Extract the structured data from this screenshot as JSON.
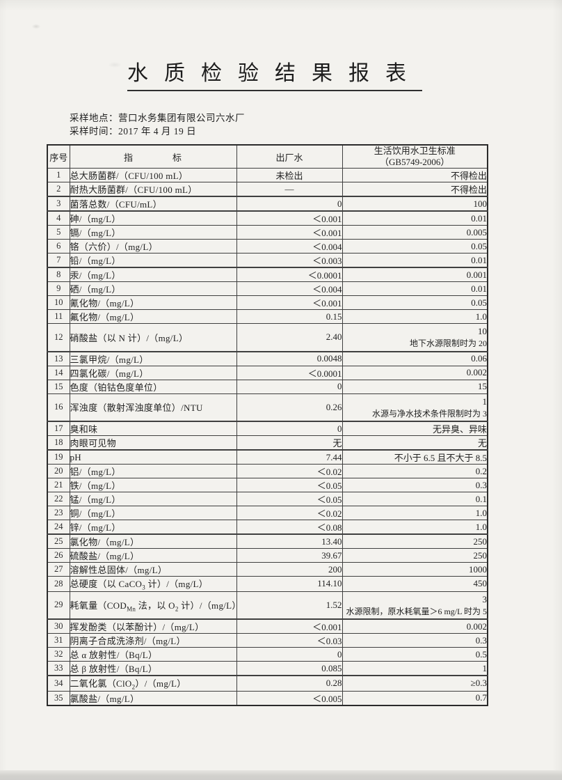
{
  "page": {
    "title": "水质检验结果报表",
    "meta": {
      "location_line": "采样地点：营口水务集团有限公司六水厂",
      "time_line": "采样时间：2017 年 4 月 19 日"
    }
  },
  "table": {
    "headers": {
      "no": "序号",
      "indicator": "指　　　　标",
      "outflow": "出厂水",
      "standard_line1": "生活饮用水卫生标准",
      "standard_line2": "（GB5749-2006）"
    },
    "rows": [
      {
        "no": "1",
        "label": "总大肠菌群/（CFU/100 mL）",
        "value": "未检出",
        "center_value": true,
        "standard": "不得检出"
      },
      {
        "no": "2",
        "label": "耐热大肠菌群/（CFU/100 mL）",
        "value": "—",
        "center_value": true,
        "standard": "不得检出"
      },
      {
        "no": "3",
        "label": "菌落总数/（CFU/mL）",
        "value": "0",
        "standard": "100"
      },
      {
        "no": "4",
        "label": "砷/（mg/L）",
        "value": "＜0.001",
        "standard": "0.01"
      },
      {
        "no": "5",
        "label": "镉/（mg/L）",
        "value": "＜0.001",
        "standard": "0.005"
      },
      {
        "no": "6",
        "label": "铬（六价）/（mg/L）",
        "value": "＜0.004",
        "standard": "0.05"
      },
      {
        "no": "7",
        "label": "铅/（mg/L）",
        "value": "＜0.003",
        "standard": "0.01"
      },
      {
        "no": "8",
        "label": "汞/（mg/L）",
        "value": "＜0.0001",
        "standard": "0.001"
      },
      {
        "no": "9",
        "label": "硒/（mg/L）",
        "value": "＜0.004",
        "standard": "0.01"
      },
      {
        "no": "10",
        "label": "氰化物/（mg/L）",
        "value": "＜0.001",
        "standard": "0.05"
      },
      {
        "no": "11",
        "label": "氟化物/（mg/L）",
        "value": "0.15",
        "standard": "1.0"
      },
      {
        "no": "12",
        "label": "硝酸盐（以 N 计）/（mg/L）",
        "value": "2.40",
        "standard": "10",
        "note": "地下水源限制时为 20"
      },
      {
        "no": "13",
        "label": "三氯甲烷/（mg/L）",
        "value": "0.0048",
        "standard": "0.06"
      },
      {
        "no": "14",
        "label": "四氯化碳/（mg/L）",
        "value": "＜0.0001",
        "standard": "0.002"
      },
      {
        "no": "15",
        "label": "色度（铂钴色度单位）",
        "value": "0",
        "standard": "15"
      },
      {
        "no": "16",
        "label": "浑浊度（散射浑浊度单位）/NTU",
        "value": "0.26",
        "standard": "1",
        "note": "水源与净水技术条件限制时为 3"
      },
      {
        "no": "17",
        "label": "臭和味",
        "value": "0",
        "standard": "无异臭、异味"
      },
      {
        "no": "18",
        "label": "肉眼可见物",
        "value": "无",
        "standard": "无"
      },
      {
        "no": "19",
        "label": "pH",
        "value": "7.44",
        "standard": "不小于 6.5 且不大于 8.5"
      },
      {
        "no": "20",
        "label": "铝/（mg/L）",
        "value": "＜0.02",
        "standard": "0.2"
      },
      {
        "no": "21",
        "label": "铁/（mg/L）",
        "value": "＜0.05",
        "standard": "0.3"
      },
      {
        "no": "22",
        "label": "锰/（mg/L）",
        "value": "＜0.05",
        "standard": "0.1"
      },
      {
        "no": "23",
        "label": "铜/（mg/L）",
        "value": "＜0.02",
        "standard": "1.0"
      },
      {
        "no": "24",
        "label": "锌/（mg/L）",
        "value": "＜0.08",
        "standard": "1.0"
      },
      {
        "no": "25",
        "label": "氯化物/（mg/L）",
        "value": "13.40",
        "standard": "250"
      },
      {
        "no": "26",
        "label": "硫酸盐/（mg/L）",
        "value": "39.67",
        "standard": "250"
      },
      {
        "no": "27",
        "label": "溶解性总固体/（mg/L）",
        "value": "200",
        "standard": "1000"
      },
      {
        "no": "28",
        "label": "总硬度（以 CaCO<sub>3</sub> 计）/（mg/L）",
        "value": "114.10",
        "standard": "450"
      },
      {
        "no": "29",
        "label": "耗氧量（COD<sub>Mn</sub> 法，以 O<sub>2</sub> 计）/（mg/L）",
        "value": "1.52",
        "standard": "3",
        "note": "水源限制，原水耗氧量＞6 mg/L 时为 5"
      },
      {
        "no": "30",
        "label": "挥发酚类（以苯酚计）/（mg/L）",
        "value": "＜0.001",
        "standard": "0.002"
      },
      {
        "no": "31",
        "label": "阴离子合成洗涤剂/（mg/L）",
        "value": "＜0.03",
        "standard": "0.3"
      },
      {
        "no": "32",
        "label": "总 α 放射性/（Bq/L）",
        "value": "0",
        "standard": "0.5"
      },
      {
        "no": "33",
        "label": "总 β 放射性/（Bq/L）",
        "value": "0.085",
        "standard": "1"
      },
      {
        "no": "34",
        "label": "二氧化氯（ClO<sub>2</sub>）/（mg/L）",
        "value": "0.28",
        "standard": "≥0.3"
      },
      {
        "no": "35",
        "label": "氯酸盐/（mg/L）",
        "value": "＜0.005",
        "standard": "0.7"
      }
    ]
  }
}
